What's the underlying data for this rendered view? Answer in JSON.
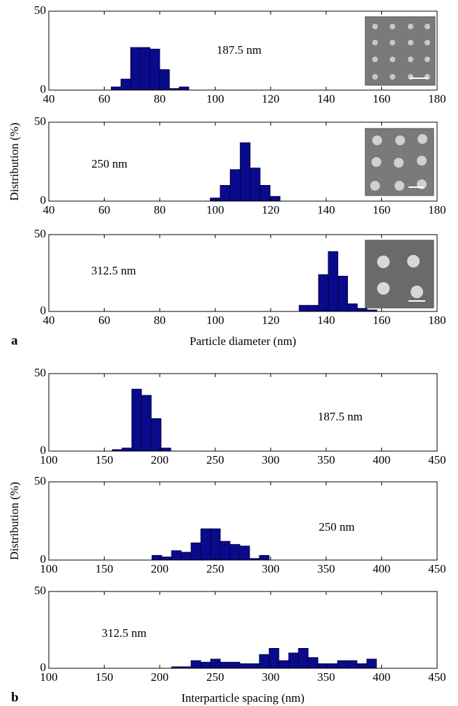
{
  "chart_data": [
    {
      "type": "histogram",
      "annotation": "187.5 nm",
      "color": "#0a0a8c",
      "bins": [
        62.5,
        66,
        69.5,
        73,
        76.5,
        80,
        83.5,
        87,
        90.5
      ],
      "values": [
        2,
        7,
        27,
        27,
        26,
        13,
        1,
        2
      ],
      "xlim": [
        40,
        180
      ],
      "xticks": [
        40,
        60,
        80,
        100,
        120,
        140,
        160,
        180
      ],
      "ylim": [
        0,
        50
      ],
      "yticks": [
        0,
        50
      ]
    },
    {
      "type": "histogram",
      "annotation": "250 nm",
      "ylabel": "Distribution (%)",
      "color": "#0a0a8c",
      "bins": [
        98.2,
        101.8,
        105.4,
        109,
        112.6,
        116.2,
        119.8,
        123.4
      ],
      "values": [
        2,
        10,
        20,
        37,
        21,
        10,
        3
      ],
      "xlim": [
        40,
        180
      ],
      "xticks": [
        40,
        60,
        80,
        100,
        120,
        140,
        160,
        180
      ],
      "ylim": [
        0,
        50
      ],
      "yticks": [
        0,
        50
      ]
    },
    {
      "type": "histogram",
      "annotation": "312.5 nm",
      "xlabel": "Particle diameter (nm)",
      "panel_label": "a",
      "color": "#0a0a8c",
      "bins": [
        130.25,
        133.75,
        137.25,
        140.75,
        144.25,
        147.75,
        151.25,
        154.75,
        158.25
      ],
      "values": [
        4,
        4,
        24,
        39,
        23,
        5,
        2,
        1
      ],
      "xlim": [
        40,
        180
      ],
      "xticks": [
        40,
        60,
        80,
        100,
        120,
        140,
        160,
        180
      ],
      "ylim": [
        0,
        50
      ],
      "yticks": [
        0,
        50
      ]
    },
    {
      "type": "histogram",
      "annotation": "187.5 nm",
      "color": "#0a0a8c",
      "bins": [
        157.2,
        166,
        174.8,
        183.6,
        192.4,
        201.2,
        210
      ],
      "values": [
        1,
        2,
        40,
        36,
        21,
        2
      ],
      "xlim": [
        100,
        450
      ],
      "xticks": [
        100,
        150,
        200,
        250,
        300,
        350,
        400,
        450
      ],
      "ylim": [
        0,
        50
      ],
      "yticks": [
        0,
        50
      ]
    },
    {
      "type": "histogram",
      "annotation": "250 nm",
      "ylabel": "Distribution (%)",
      "color": "#0a0a8c",
      "bins": [
        193,
        201.8,
        210.6,
        219.4,
        228.2,
        237,
        245.8,
        254.6,
        263.4,
        272.2,
        281,
        289.8,
        298.6
      ],
      "values": [
        3,
        2,
        6,
        5,
        11,
        20,
        20,
        12,
        10,
        9,
        1,
        3
      ],
      "xlim": [
        100,
        450
      ],
      "xticks": [
        100,
        150,
        200,
        250,
        300,
        350,
        400,
        450
      ],
      "ylim": [
        0,
        50
      ],
      "yticks": [
        0,
        50
      ]
    },
    {
      "type": "histogram",
      "annotation": "312.5 nm",
      "xlabel": "Interparticle spacing (nm)",
      "panel_label": "b",
      "color": "#0a0a8c",
      "bins": [
        210.6,
        219.4,
        228.2,
        237,
        245.8,
        254.6,
        263.4,
        272.2,
        281,
        289.8,
        298.6,
        307.4,
        316.2,
        325,
        333.8,
        342.6,
        351.4,
        360.2,
        369,
        377.8,
        386.6,
        395.4
      ],
      "values": [
        1,
        1,
        5,
        4,
        6,
        4,
        4,
        3,
        3,
        9,
        13,
        5,
        10,
        13,
        7,
        3,
        3,
        5,
        5,
        3,
        6
      ],
      "xlim": [
        100,
        450
      ],
      "xticks": [
        100,
        150,
        200,
        250,
        300,
        350,
        400,
        450
      ],
      "ylim": [
        0,
        50
      ],
      "yticks": [
        0,
        50
      ]
    }
  ]
}
